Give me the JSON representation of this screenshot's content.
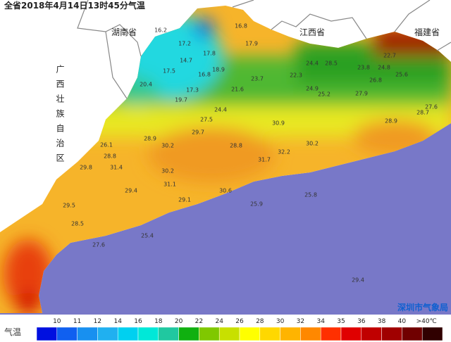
{
  "title": "全省2018年4月14日13时45分气温",
  "provinces": [
    "湖南省",
    "江西省",
    "福建省"
  ],
  "region_vertical": "广西壮族自治区",
  "source": "深圳市气象局",
  "legend": {
    "title": "气温",
    "colors": [
      "#0010e0",
      "#1060f0",
      "#1890f0",
      "#20b0f0",
      "#00d0f0",
      "#00e8d8",
      "#20c8a0",
      "#10b010",
      "#80c800",
      "#c8e000",
      "#ffff00",
      "#ffd800",
      "#ffb400",
      "#ff8800",
      "#ff3000",
      "#e00000",
      "#c00000",
      "#a00000",
      "#700000",
      "#300000"
    ],
    "labels": [
      "10",
      "11",
      "12",
      "14",
      "16",
      "18",
      "20",
      "22",
      "24",
      "26",
      "28",
      "30",
      "32",
      "34",
      "35",
      "36",
      "38",
      "40",
      ">40℃"
    ]
  },
  "readings": [
    16.2,
    16.8,
    17.2,
    17.8,
    17.9,
    16.8,
    17.5,
    14.7,
    18.9,
    20.4,
    17.3,
    19.7,
    21.6,
    23.7,
    22.3,
    24.4,
    28.5,
    22.7,
    23.8,
    24.8,
    25.6,
    26.8,
    27.9,
    24.9,
    25.2,
    24.4,
    27.5,
    30.9,
    30.2,
    28.9,
    30.2,
    29.7,
    31.4,
    30.2,
    31.1,
    29.5,
    28.5,
    27.6,
    29.4,
    28.8,
    31.7,
    32.2,
    28.9,
    27.6,
    30.6,
    29.1,
    25.8,
    25.9,
    29.4,
    25.4,
    26.1,
    28.8,
    29.8,
    28.7
  ]
}
